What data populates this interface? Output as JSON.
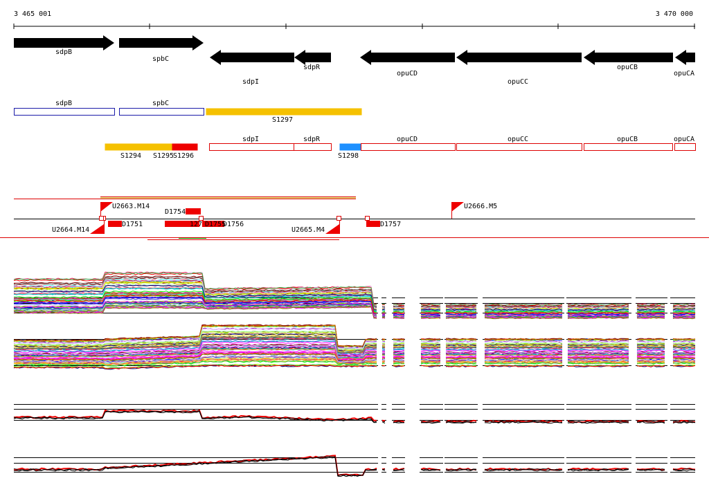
{
  "coordinates": {
    "start": "3 465 001",
    "end": "3 470 000"
  },
  "genes": [
    {
      "name": "sdpB",
      "strand": "+"
    },
    {
      "name": "spbC",
      "strand": "+"
    },
    {
      "name": "sdpI",
      "strand": "-"
    },
    {
      "name": "sdpR",
      "strand": "-"
    },
    {
      "name": "opuCD",
      "strand": "-"
    },
    {
      "name": "opuCC",
      "strand": "-"
    },
    {
      "name": "opuCB",
      "strand": "-"
    },
    {
      "name": "opuCA",
      "strand": "-"
    }
  ],
  "segments_upper": [
    {
      "label": "sdpB",
      "style": "outline-blue"
    },
    {
      "label": "spbC",
      "style": "outline-blue"
    },
    {
      "label": "S1297",
      "style": "filled-orange"
    }
  ],
  "segments_lower": [
    {
      "label": "S1294",
      "style": "filled-orange"
    },
    {
      "label": "S1295",
      "style": "filled-orange"
    },
    {
      "label": "S1296",
      "style": "filled-red"
    },
    {
      "label": "sdpI",
      "style": "outline-red"
    },
    {
      "label": "sdpR",
      "style": "outline-red"
    },
    {
      "label": "S1298",
      "style": "filled-blue"
    },
    {
      "label": "opuCD",
      "style": "outline-red"
    },
    {
      "label": "opuCC",
      "style": "outline-red"
    },
    {
      "label": "opuCB",
      "style": "outline-red"
    },
    {
      "label": "opuCA",
      "style": "outline-red"
    }
  ],
  "features": {
    "upstream_flags": [
      "U2663.M14",
      "U2666.M5"
    ],
    "downstream_flags": [
      "U2664.M14",
      "U2665.M4"
    ],
    "d_boxes": [
      "D1754",
      "D1751",
      "D1755",
      "D1756",
      "D1757"
    ],
    "d_box_fragments": [
      "127",
      "D1755",
      "D1756"
    ]
  },
  "colors": {
    "gene_arrow": "#000000",
    "outline_blue": "#1a1aa8",
    "filled_orange": "#f5c100",
    "filled_red": "#ee0000",
    "outline_red": "#dd0000",
    "filled_blue": "#1e90ff",
    "profile_red": "#ee0000",
    "profile_black": "#000000"
  }
}
